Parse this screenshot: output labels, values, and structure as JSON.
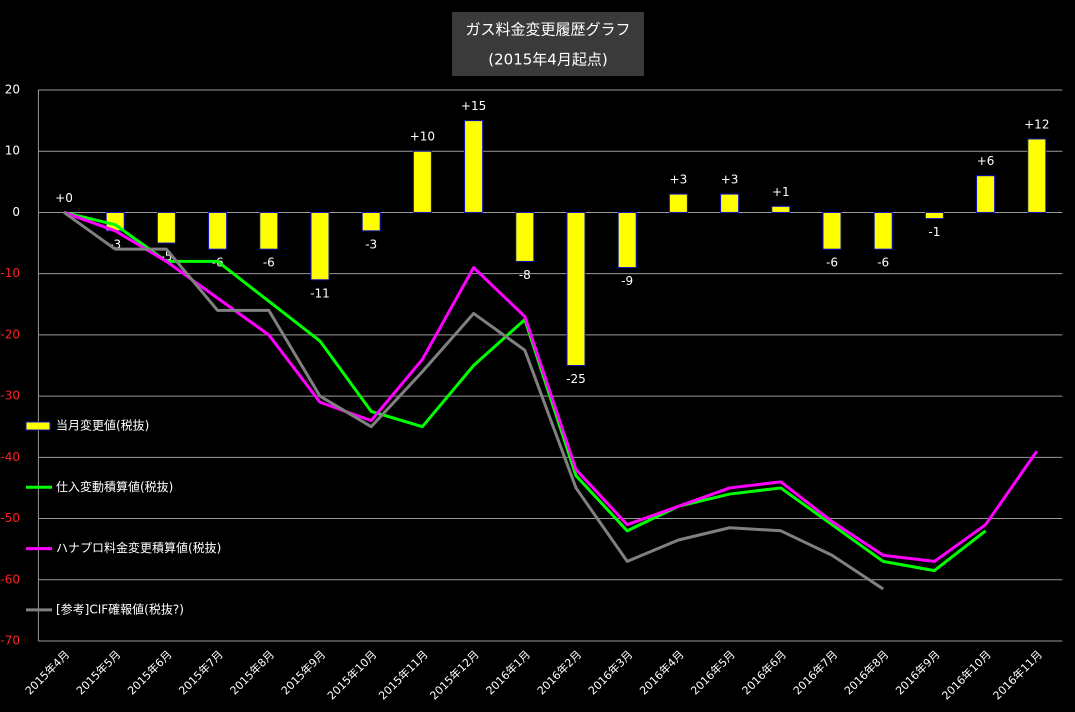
{
  "chart_data": {
    "type": "combo",
    "title": "ガス料金変更履歴グラフ",
    "subtitle": "(2015年4月起点)",
    "categories": [
      "2015年4月",
      "2015年5月",
      "2015年6月",
      "2015年7月",
      "2015年8月",
      "2015年9月",
      "2015年10月",
      "2015年11月",
      "2015年12月",
      "2016年1月",
      "2016年2月",
      "2016年3月",
      "2016年4月",
      "2016年5月",
      "2016年6月",
      "2016年7月",
      "2016年8月",
      "2016年9月",
      "2016年10月",
      "2016年11月"
    ],
    "series": [
      {
        "name": "当月変更値(税抜)",
        "type": "bar",
        "color": "#ffff00",
        "values": [
          0,
          -3,
          -5,
          -6,
          -6,
          -11,
          -3,
          10,
          15,
          -8,
          -25,
          -9,
          3,
          3,
          1,
          -6,
          -6,
          -1,
          6,
          12
        ],
        "value_labels": [
          "+0",
          "-3",
          "-5",
          "-6",
          "-6",
          "-11",
          "-3",
          "+10",
          "+15",
          "-8",
          "-25",
          "-9",
          "+3",
          "+3",
          "+1",
          "-6",
          "-6",
          "-1",
          "+6",
          "+12"
        ]
      },
      {
        "name": "仕入変動積算値(税抜)",
        "type": "line",
        "color": "#00ff00",
        "values": [
          0,
          -2,
          -8,
          -8,
          -14.5,
          -21,
          -32.5,
          -35,
          -25,
          -17.5,
          -43,
          -52,
          -48,
          -46,
          -45,
          -51,
          -57,
          -58.5,
          -52,
          null
        ]
      },
      {
        "name": "ハナプロ料金変更積算値(税抜)",
        "type": "line",
        "color": "#ff00ff",
        "values": [
          0,
          -3,
          -8,
          -14,
          -20,
          -31,
          -34,
          -24,
          -9,
          -17,
          -42,
          -51,
          -48,
          -45,
          -44,
          -50.5,
          -56,
          -57,
          -51,
          -39
        ]
      },
      {
        "name": "[参考]CIF確報値(税抜?)",
        "type": "line",
        "color": "#808080",
        "values": [
          0,
          -6,
          -6,
          -16,
          -16,
          -30,
          -35,
          -26,
          -16.5,
          -22.5,
          -45,
          -57,
          -53.5,
          -51.5,
          -52,
          -56,
          -61.5,
          null,
          null,
          null
        ]
      }
    ],
    "ylim": [
      -70,
      20
    ],
    "yticks": [
      20,
      10,
      0,
      -10,
      -20,
      -30,
      -40,
      -50,
      -60,
      -70
    ],
    "grid": true,
    "negative_tick_color": "#ff2020",
    "legend": "left"
  }
}
